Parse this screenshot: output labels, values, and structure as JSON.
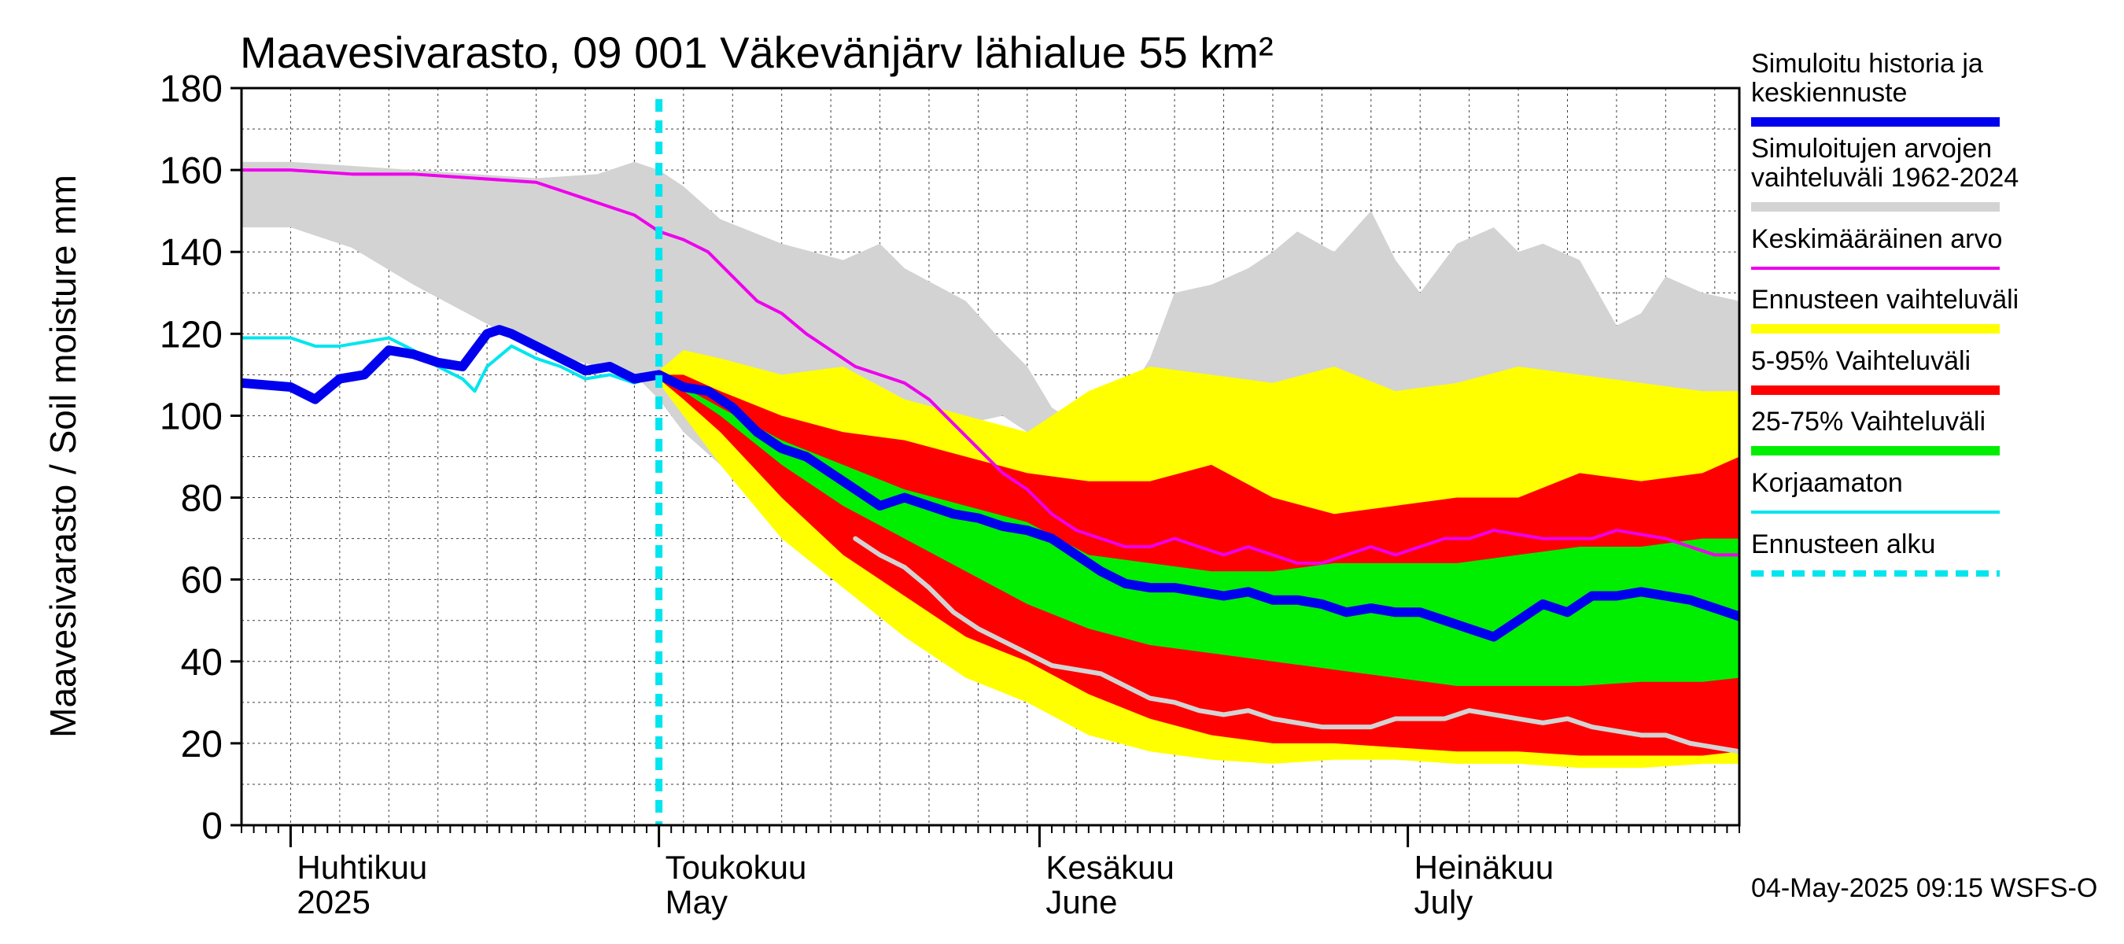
{
  "chart_data": {
    "type": "area",
    "title": "Maavesivarasto, 09 001 Väkevänjärv lähialue 55 km²",
    "ylabel": "Maavesivarasto / Soil moisture   mm",
    "ylim": [
      0,
      180
    ],
    "yticks": [
      0,
      20,
      40,
      60,
      80,
      100,
      120,
      140,
      160,
      180
    ],
    "x_domain": {
      "start_day": -4,
      "end_day": 118,
      "note": "day 0 = 2025-04-01"
    },
    "forecast_start_day": 30,
    "month_ticks": [
      {
        "day": 0,
        "label_fi": "Huhtikuu",
        "label_en": "2025"
      },
      {
        "day": 30,
        "label_fi": "Toukokuu",
        "label_en": "May"
      },
      {
        "day": 61,
        "label_fi": "Kesäkuu",
        "label_en": "June"
      },
      {
        "day": 91,
        "label_fi": "Heinäkuu",
        "label_en": "July"
      },
      {
        "day": 122,
        "label_fi": "",
        "label_en": ""
      }
    ],
    "footer": "04-May-2025 09:15 WSFS-O",
    "colors": {
      "history_range": "#d3d3d3",
      "forecast_range": "#ffff00",
      "p5_95": "#ff0000",
      "p25_75": "#00ee00",
      "median": "#0000ee",
      "mean": "#ee00ee",
      "uncorrected": "#00e5ee",
      "forecast_start": "#00e5ee",
      "min_trace": "#d3d3d3"
    },
    "legend": [
      {
        "label": "Simuloitu historia ja keskiennuste",
        "style": "thick",
        "color_key": "median"
      },
      {
        "label": "Simuloitujen arvojen vaihteluväli 1962-2024",
        "style": "thick",
        "color_key": "history_range"
      },
      {
        "label": "Keskimääräinen arvo",
        "style": "thin",
        "color_key": "mean"
      },
      {
        "label": "Ennusteen vaihteluväli",
        "style": "thick",
        "color_key": "forecast_range"
      },
      {
        "label": "5-95% Vaihteluväli",
        "style": "thick",
        "color_key": "p5_95"
      },
      {
        "label": "25-75% Vaihteluväli",
        "style": "thick",
        "color_key": "p25_75"
      },
      {
        "label": "Korjaamaton",
        "style": "thin",
        "color_key": "uncorrected"
      },
      {
        "label": "Ennusteen alku",
        "style": "dashed",
        "color_key": "forecast_start"
      }
    ],
    "series": {
      "history_range": {
        "x": [
          -4,
          0,
          5,
          10,
          15,
          20,
          25,
          28,
          30,
          32,
          35,
          40,
          45,
          48,
          50,
          55,
          58,
          60,
          62,
          65,
          68,
          70,
          72,
          75,
          78,
          80,
          82,
          85,
          88,
          90,
          92,
          95,
          98,
          100,
          102,
          105,
          108,
          110,
          112,
          115,
          118
        ],
        "upper": [
          162,
          162,
          161,
          160,
          159,
          158,
          159,
          162,
          160,
          156,
          148,
          142,
          138,
          142,
          136,
          128,
          118,
          112,
          102,
          96,
          104,
          114,
          130,
          132,
          136,
          140,
          145,
          140,
          150,
          138,
          130,
          142,
          146,
          140,
          142,
          138,
          122,
          125,
          134,
          130,
          128
        ],
        "lower": [
          146,
          146,
          141,
          132,
          124,
          116,
          112,
          110,
          104,
          96,
          88,
          76,
          68,
          76,
          92,
          98,
          100,
          96,
          94,
          92,
          90,
          94,
          96,
          100,
          104,
          104,
          104,
          102,
          108,
          104,
          102,
          108,
          110,
          112,
          110,
          108,
          104,
          104,
          106,
          102,
          100
        ]
      },
      "forecast_range": {
        "x": [
          30,
          32,
          35,
          40,
          45,
          50,
          55,
          60,
          65,
          70,
          75,
          80,
          85,
          90,
          95,
          100,
          105,
          110,
          115,
          118
        ],
        "upper": [
          111,
          116,
          114,
          110,
          112,
          104,
          100,
          96,
          106,
          112,
          110,
          108,
          112,
          106,
          108,
          112,
          110,
          108,
          106,
          106
        ],
        "lower": [
          108,
          100,
          88,
          70,
          58,
          46,
          36,
          30,
          22,
          18,
          16,
          15,
          16,
          16,
          15,
          15,
          14,
          14,
          15,
          15
        ]
      },
      "p5_95": {
        "x": [
          30,
          32,
          35,
          40,
          45,
          50,
          55,
          60,
          65,
          70,
          75,
          80,
          85,
          90,
          95,
          100,
          105,
          110,
          115,
          118
        ],
        "upper": [
          110,
          110,
          106,
          100,
          96,
          94,
          90,
          86,
          84,
          84,
          88,
          80,
          76,
          78,
          80,
          80,
          86,
          84,
          86,
          90
        ],
        "lower": [
          109,
          104,
          96,
          80,
          66,
          56,
          46,
          40,
          32,
          26,
          22,
          20,
          20,
          19,
          18,
          18,
          17,
          17,
          17,
          18
        ]
      },
      "p25_75": {
        "x": [
          30,
          32,
          35,
          40,
          45,
          50,
          55,
          60,
          65,
          70,
          75,
          80,
          85,
          90,
          95,
          100,
          105,
          110,
          115,
          118
        ],
        "upper": [
          109,
          107,
          102,
          94,
          88,
          82,
          78,
          74,
          66,
          64,
          62,
          62,
          64,
          64,
          64,
          66,
          68,
          68,
          70,
          70
        ],
        "lower": [
          109,
          106,
          100,
          88,
          78,
          70,
          62,
          54,
          48,
          44,
          42,
          40,
          38,
          36,
          34,
          34,
          34,
          35,
          35,
          36
        ]
      },
      "median": {
        "x": [
          -4,
          0,
          2,
          4,
          6,
          8,
          10,
          12,
          14,
          16,
          17,
          18,
          20,
          22,
          24,
          26,
          28,
          30,
          32,
          34,
          36,
          38,
          40,
          42,
          44,
          46,
          48,
          50,
          52,
          54,
          56,
          58,
          60,
          62,
          64,
          66,
          68,
          70,
          72,
          74,
          76,
          78,
          80,
          82,
          84,
          86,
          88,
          90,
          92,
          94,
          96,
          98,
          100,
          102,
          104,
          106,
          108,
          110,
          112,
          114,
          116,
          118
        ],
        "y": [
          108,
          107,
          104,
          109,
          110,
          116,
          115,
          113,
          112,
          120,
          121,
          120,
          117,
          114,
          111,
          112,
          109,
          110,
          107,
          106,
          102,
          96,
          92,
          90,
          86,
          82,
          78,
          80,
          78,
          76,
          75,
          73,
          72,
          70,
          66,
          62,
          59,
          58,
          58,
          57,
          56,
          57,
          55,
          55,
          54,
          52,
          53,
          52,
          52,
          50,
          48,
          46,
          50,
          54,
          52,
          56,
          56,
          57,
          56,
          55,
          53,
          51
        ]
      },
      "mean": {
        "x": [
          -4,
          0,
          5,
          10,
          15,
          20,
          22,
          24,
          26,
          28,
          30,
          32,
          34,
          36,
          38,
          40,
          42,
          44,
          46,
          48,
          50,
          52,
          54,
          56,
          58,
          60,
          62,
          64,
          66,
          68,
          70,
          72,
          74,
          76,
          78,
          80,
          82,
          84,
          86,
          88,
          90,
          92,
          94,
          96,
          98,
          100,
          102,
          104,
          106,
          108,
          110,
          112,
          114,
          116,
          118
        ],
        "y": [
          160,
          160,
          159,
          159,
          158,
          157,
          155,
          153,
          151,
          149,
          145,
          143,
          140,
          134,
          128,
          125,
          120,
          116,
          112,
          110,
          108,
          104,
          98,
          92,
          86,
          82,
          76,
          72,
          70,
          68,
          68,
          70,
          68,
          66,
          68,
          66,
          64,
          64,
          66,
          68,
          66,
          68,
          70,
          70,
          72,
          71,
          70,
          70,
          70,
          72,
          71,
          70,
          68,
          66,
          66
        ]
      },
      "uncorrected": {
        "x": [
          -4,
          0,
          2,
          4,
          6,
          8,
          10,
          12,
          14,
          15,
          16,
          18,
          20,
          22,
          24,
          26,
          28,
          30
        ],
        "y": [
          119,
          119,
          117,
          117,
          118,
          119,
          116,
          112,
          109,
          106,
          112,
          117,
          114,
          112,
          109,
          110,
          108,
          110
        ]
      },
      "min_trace": {
        "x": [
          46,
          48,
          50,
          52,
          54,
          56,
          58,
          60,
          62,
          64,
          66,
          68,
          70,
          72,
          74,
          76,
          78,
          80,
          82,
          84,
          86,
          88,
          90,
          92,
          94,
          96,
          98,
          100,
          102,
          104,
          106,
          108,
          110,
          112,
          114,
          116,
          118
        ],
        "y": [
          70,
          66,
          63,
          58,
          52,
          48,
          45,
          42,
          39,
          38,
          37,
          34,
          31,
          30,
          28,
          27,
          28,
          26,
          25,
          24,
          24,
          24,
          26,
          26,
          26,
          28,
          27,
          26,
          25,
          26,
          24,
          23,
          22,
          22,
          20,
          19,
          18
        ]
      }
    }
  }
}
